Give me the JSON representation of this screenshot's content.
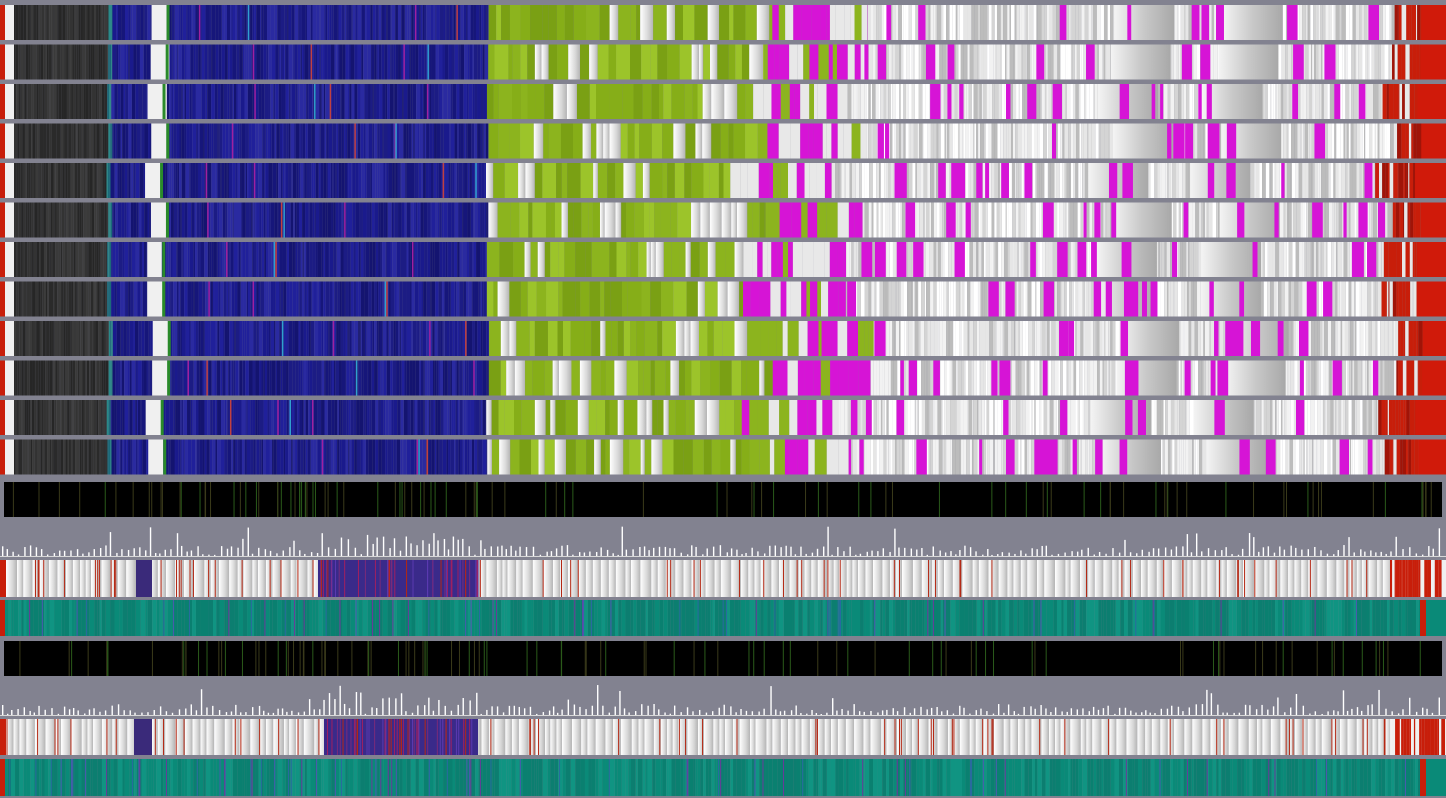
{
  "colors": {
    "background": "#828290",
    "dark_gray": "#2a2a2a",
    "navy": "#1a1a8c",
    "olive_green": "#8cb41e",
    "magenta": "#d614d6",
    "light_gray": "#e0e0e0",
    "red": "#c81e0a",
    "teal": "#0a8a78",
    "black": "#000000",
    "white": "#ffffff"
  },
  "track_groups": [
    {
      "name": "colored-tracks",
      "count": 12,
      "palette": [
        "dark_gray",
        "navy",
        "olive_green",
        "magenta",
        "light_gray",
        "red"
      ]
    },
    {
      "name": "summary-tracks",
      "sequence": [
        "black-track",
        "histogram-track",
        "white-red-track",
        "teal-track",
        "black-track",
        "histogram-track",
        "white-red-track",
        "teal-track"
      ]
    }
  ]
}
